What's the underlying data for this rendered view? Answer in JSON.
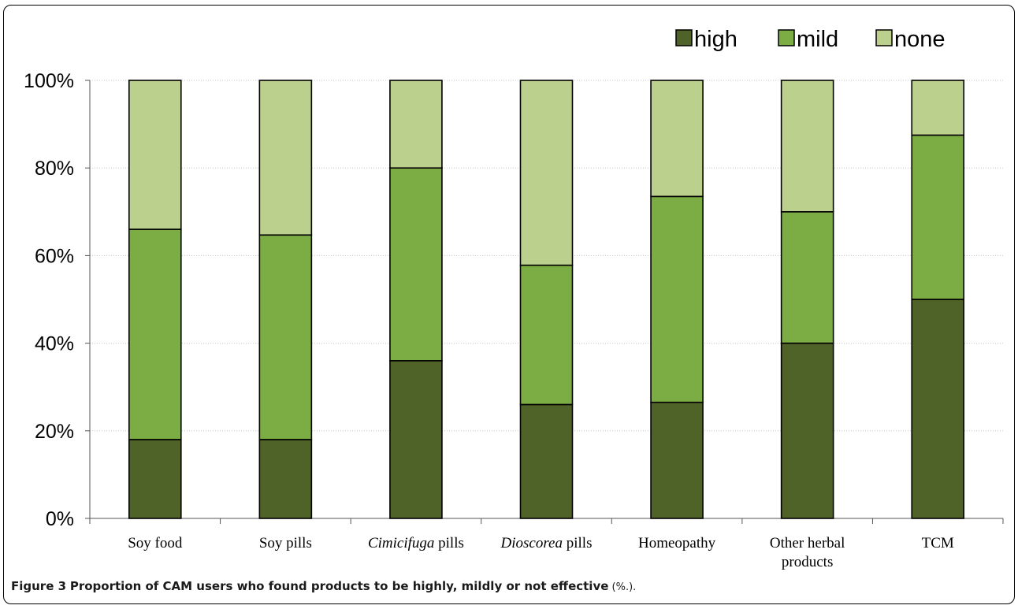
{
  "figure": {
    "caption_label": "Figure 3",
    "caption_text": "Proportion of CAM users who found products to be highly, mildly or not effective",
    "caption_suffix": " (%.)."
  },
  "colors": {
    "high": "#4f6228",
    "mild": "#7cac44",
    "none": "#bcd08e",
    "gridline": "#c8c8c8"
  },
  "chart_data": {
    "type": "bar",
    "stacked": true,
    "title": "",
    "xlabel": "",
    "ylabel": "",
    "ylim": [
      0,
      100
    ],
    "yticks": [
      "0%",
      "20%",
      "40%",
      "60%",
      "80%",
      "100%"
    ],
    "legend_position": "top-right",
    "categories": [
      {
        "parts": [
          {
            "text": "Soy food",
            "italic": false
          }
        ]
      },
      {
        "parts": [
          {
            "text": "Soy pills",
            "italic": false
          }
        ]
      },
      {
        "parts": [
          {
            "text": "Cimicifuga",
            "italic": true
          },
          {
            "text": " pills",
            "italic": false
          }
        ]
      },
      {
        "parts": [
          {
            "text": "Dioscorea",
            "italic": true
          },
          {
            "text": " pills",
            "italic": false
          }
        ]
      },
      {
        "parts": [
          {
            "text": "Homeopathy",
            "italic": false
          }
        ]
      },
      {
        "lines": [
          "Other herbal",
          "products"
        ]
      },
      {
        "parts": [
          {
            "text": "TCM",
            "italic": false
          }
        ]
      }
    ],
    "series": [
      {
        "name": "high",
        "values": [
          18,
          18,
          36,
          26,
          26.5,
          40,
          50
        ]
      },
      {
        "name": "mild",
        "values": [
          48,
          46.7,
          44,
          31.8,
          47,
          30,
          37.5
        ]
      },
      {
        "name": "none",
        "values": [
          34,
          35.3,
          20,
          42.2,
          26.5,
          30,
          12.5
        ]
      }
    ]
  }
}
